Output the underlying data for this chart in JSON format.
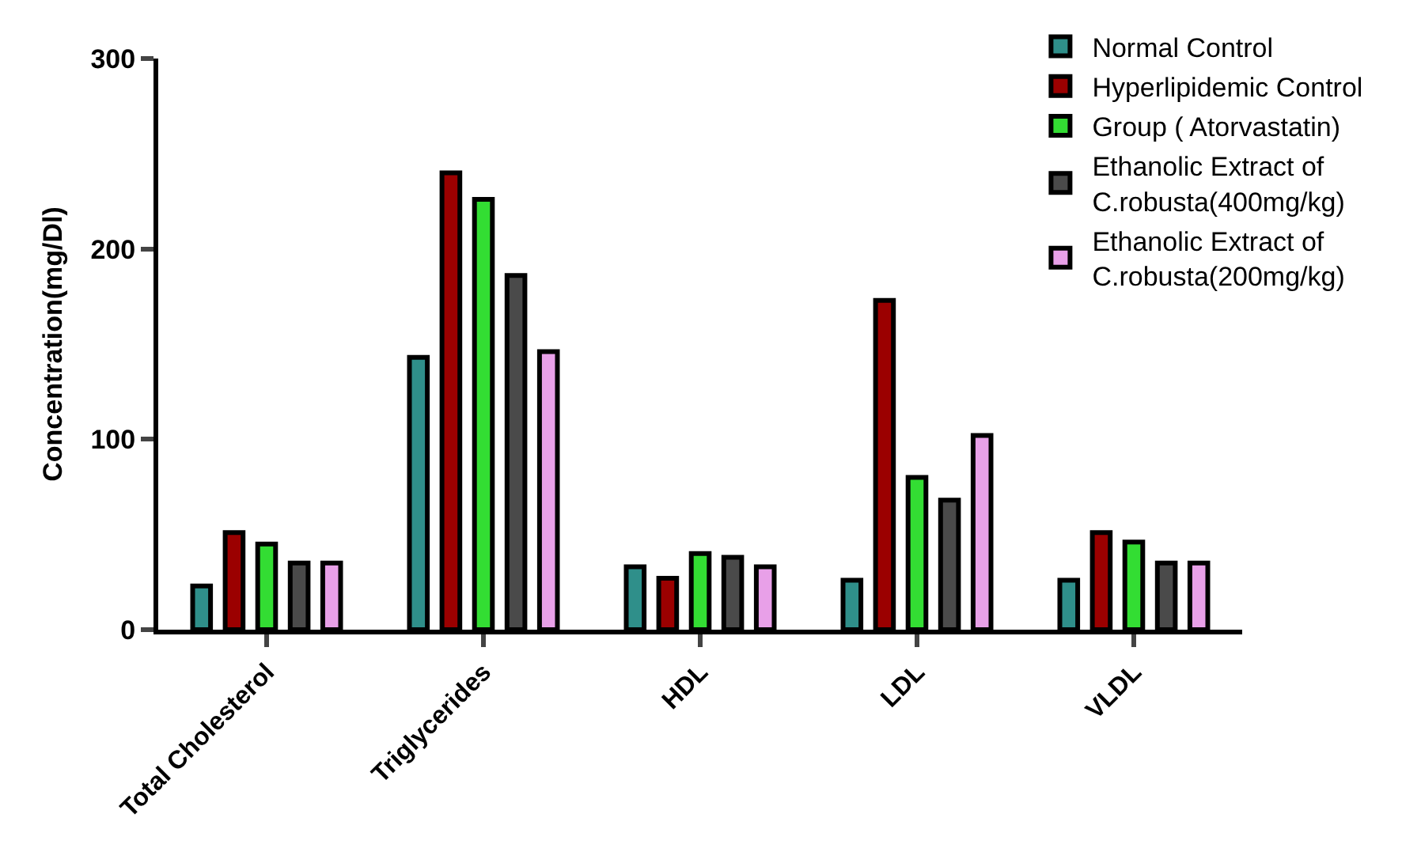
{
  "chart_data": {
    "type": "bar",
    "ylabel": "Concentration(mg/Dl)",
    "categories": [
      "Total Cholesterol",
      "Triglycerides",
      "HDL",
      "LDL",
      "VLDL"
    ],
    "series": [
      {
        "name": "Normal Control",
        "color": "#2f8f8a",
        "values": [
          23,
          143,
          33,
          26,
          26
        ]
      },
      {
        "name": "Hyperlipidemic Control",
        "color": "#9b0000",
        "values": [
          51,
          240,
          27,
          173,
          51
        ]
      },
      {
        "name": "Group ( Atorvastatin)",
        "color": "#33dd33",
        "values": [
          45,
          226,
          40,
          80,
          46
        ]
      },
      {
        "name": "Ethanolic Extract of C.robusta(400mg/kg)",
        "color": "#4a4a4a",
        "values": [
          35,
          186,
          38,
          68,
          35
        ]
      },
      {
        "name": "Ethanolic Extract of C.robusta(200mg/kg)",
        "color": "#e8a0e8",
        "values": [
          35,
          146,
          33,
          102,
          35
        ]
      }
    ],
    "ylim": [
      0,
      300
    ],
    "yticks": [
      0,
      100,
      200,
      300
    ],
    "grid": false,
    "legend": "top right"
  }
}
